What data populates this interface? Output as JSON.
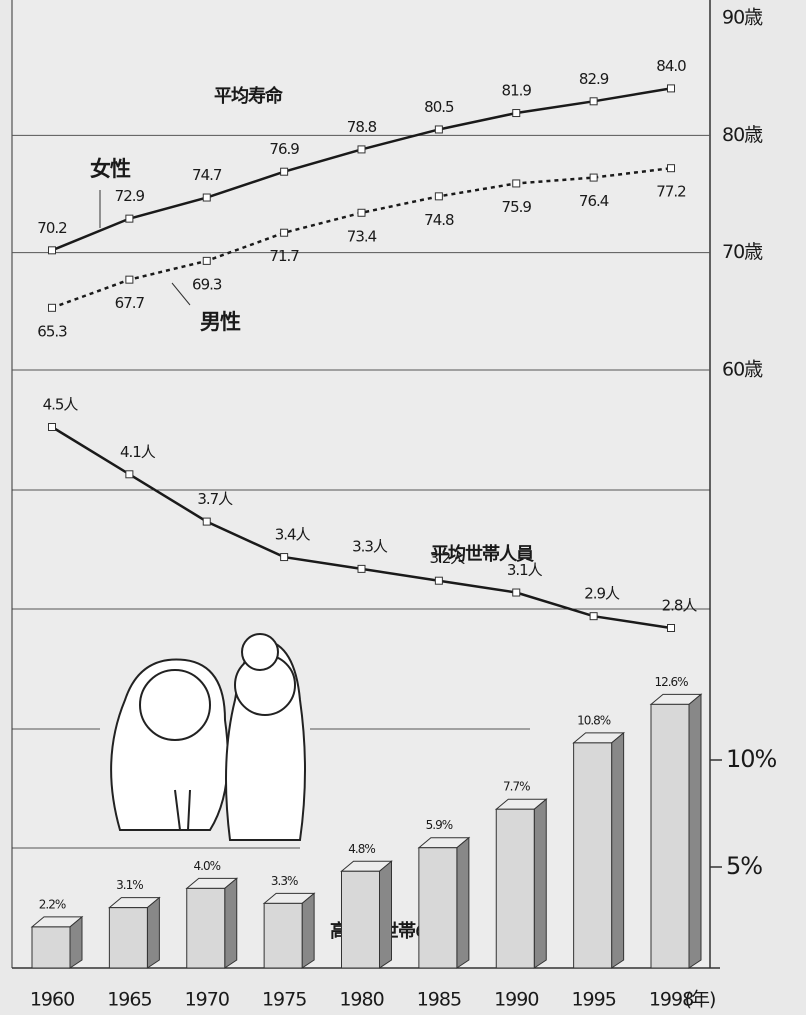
{
  "chart_data": [
    {
      "type": "line",
      "title": "平均寿命",
      "series": [
        {
          "name": "女性",
          "color": "#1a1a1a",
          "values": [
            70.2,
            72.9,
            74.7,
            76.9,
            78.8,
            80.5,
            81.9,
            82.9,
            84.0
          ],
          "value_labels": [
            "70.2",
            "72.9",
            "74.7",
            "76.9",
            "78.8",
            "80.5",
            "81.9",
            "82.9",
            "84.0"
          ]
        },
        {
          "name": "男性",
          "color": "#1a1a1a",
          "dashed": true,
          "values": [
            65.3,
            67.7,
            69.3,
            71.7,
            73.4,
            74.8,
            75.9,
            76.4,
            77.2
          ]
        }
      ],
      "ylim": [
        60,
        90
      ],
      "yticks": [
        {
          "value": 60,
          "label": "60歳"
        },
        {
          "value": 70,
          "label": "70歳"
        },
        {
          "value": 80,
          "label": "80歳"
        },
        {
          "value": 90,
          "label": "90歳"
        }
      ],
      "grid": true
    },
    {
      "type": "line",
      "title": "平均世帯人員",
      "color": "#1a1a1a",
      "values": [
        4.5,
        4.1,
        3.7,
        3.4,
        3.3,
        3.2,
        3.1,
        2.9,
        2.8
      ],
      "value_labels": [
        "4.5人",
        "4.1人",
        "3.7人",
        "3.4人",
        "3.3人",
        "3.2人",
        "3.1人",
        "2.9人",
        "2.8人"
      ]
    },
    {
      "type": "bar",
      "title": "高齢者世帯の割合",
      "color": "#d8d8d8",
      "categories": [
        "1960",
        "1965",
        "1970",
        "1975",
        "1980",
        "1985",
        "1990",
        "1995",
        "1998"
      ],
      "x_unit": "(年)",
      "values": [
        2.2,
        3.1,
        4.0,
        3.3,
        4.8,
        5.9,
        7.7,
        10.8,
        12.6
      ],
      "value_labels": [
        "2.2%",
        "3.1%",
        "4.0%",
        "3.3%",
        "4.8%",
        "5.9%",
        "7.7%",
        "10.8%",
        "12.6%"
      ],
      "ylim": [
        0,
        15
      ],
      "yticks": [
        {
          "value": 5,
          "label": "5%"
        },
        {
          "value": 10,
          "label": "10%"
        }
      ]
    }
  ]
}
